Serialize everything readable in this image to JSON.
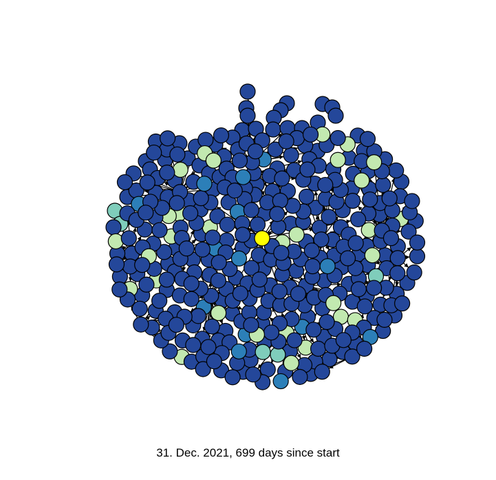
{
  "caption": "31. Dec. 2021,  699 days since start",
  "legend": {
    "present": false
  },
  "node_color_scale": {
    "name": "YlGnBu",
    "colors": [
      "#ffff00",
      "#c2e9b0",
      "#7fcdbb",
      "#2c7fb8",
      "#24479a"
    ],
    "outline": "#000000"
  },
  "edge_color": "#000000",
  "network": {
    "focus_node_color": "#ffff00",
    "dominant_node_color": "#24479a",
    "counts": {
      "yellow": 1,
      "pale_green": 30,
      "teal": 5,
      "mid_blue": 14,
      "dark_blue": 420
    }
  }
}
